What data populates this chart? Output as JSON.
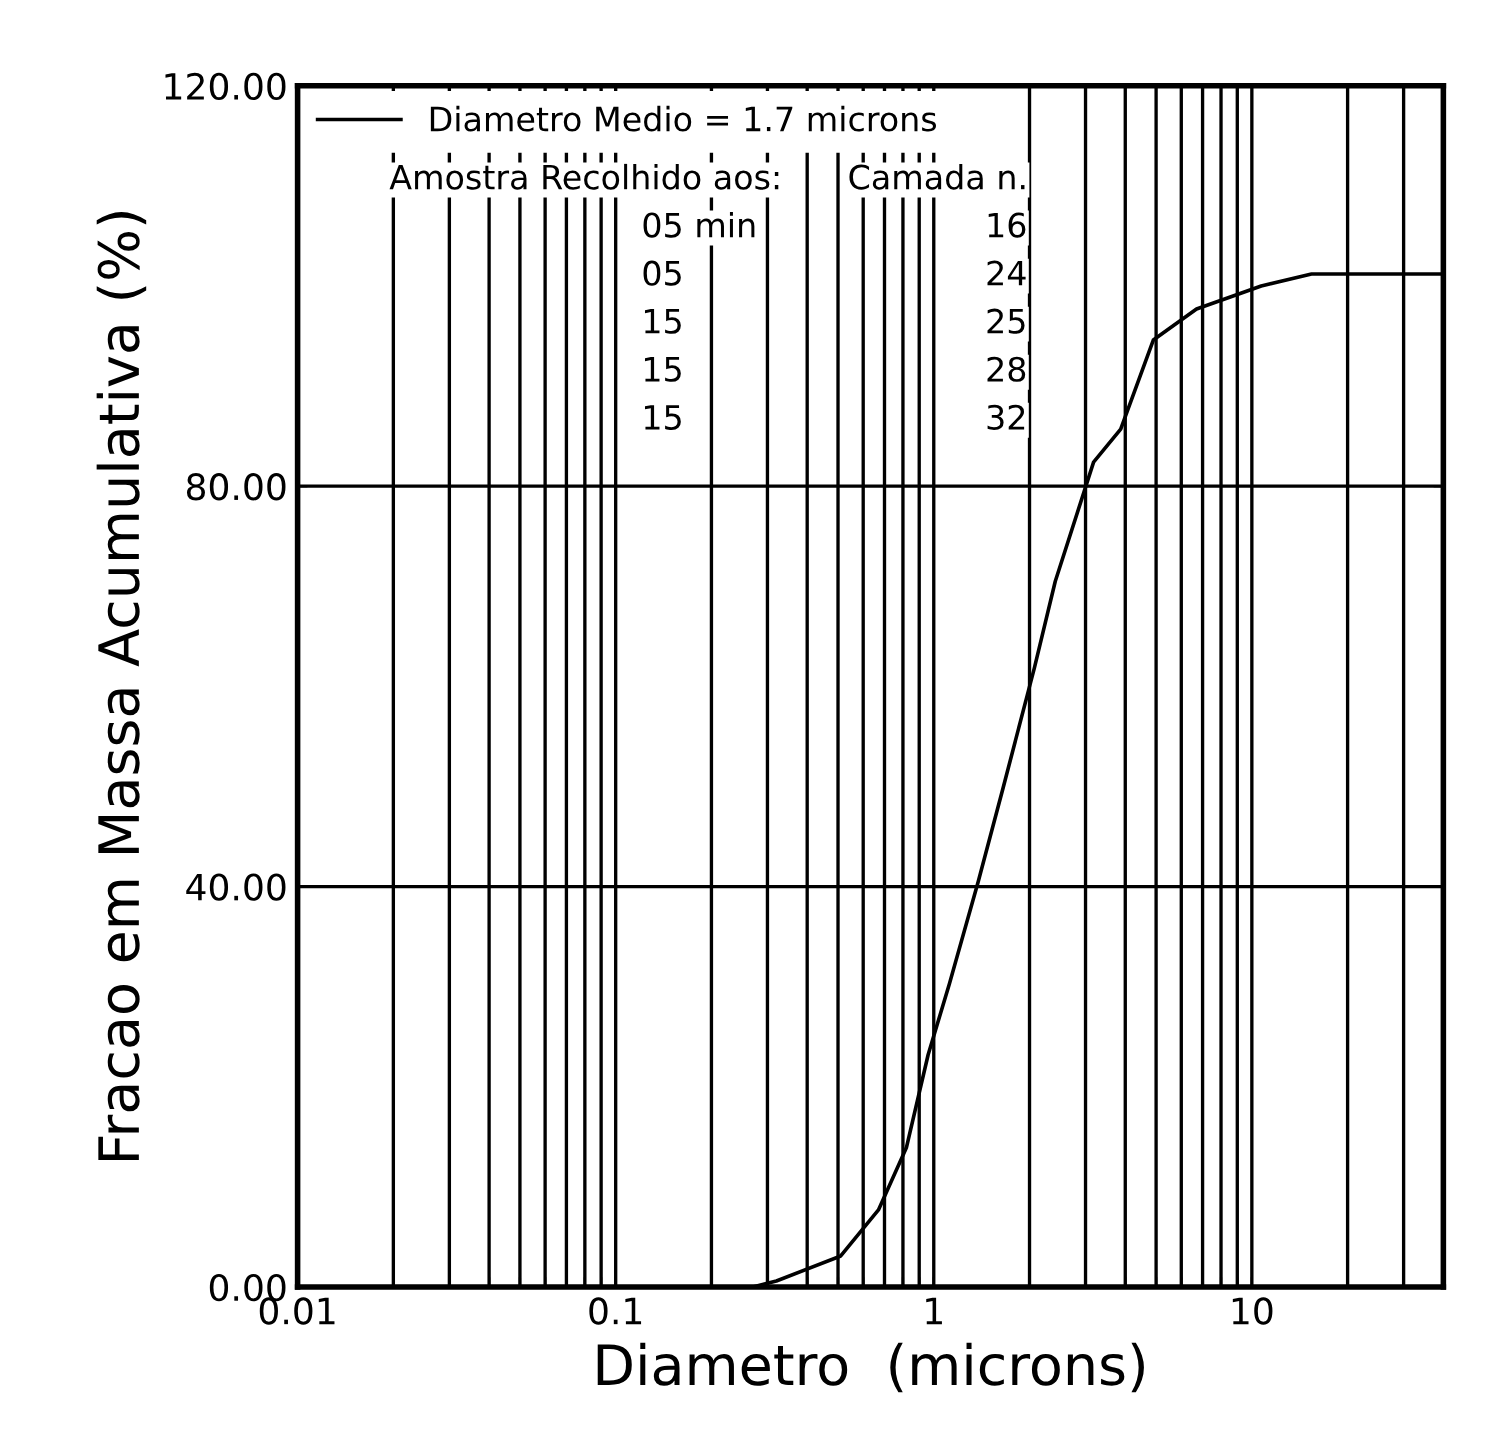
{
  "chart_data": {
    "type": "line",
    "xlabel": "Diametro  (microns)",
    "ylabel": "Fracao em Massa Acumulativa (%)",
    "log": "x",
    "grid": true,
    "legend": "top left",
    "marker": "none",
    "line_style": "solid",
    "xlim": [
      0.01,
      40
    ],
    "ylim": [
      0,
      120
    ],
    "xticks": [
      {
        "value": 0.01,
        "label": "0.01"
      },
      {
        "value": 0.02,
        "label": null
      },
      {
        "value": 0.03,
        "label": null
      },
      {
        "value": 0.04,
        "label": null
      },
      {
        "value": 0.05,
        "label": null
      },
      {
        "value": 0.06,
        "label": null
      },
      {
        "value": 0.07,
        "label": null
      },
      {
        "value": 0.08,
        "label": null
      },
      {
        "value": 0.09,
        "label": null
      },
      {
        "value": 0.1,
        "label": "0.1"
      },
      {
        "value": 0.2,
        "label": null
      },
      {
        "value": 0.3,
        "label": null
      },
      {
        "value": 0.4,
        "label": null
      },
      {
        "value": 0.5,
        "label": null
      },
      {
        "value": 0.6,
        "label": null
      },
      {
        "value": 0.7,
        "label": null
      },
      {
        "value": 0.8,
        "label": null
      },
      {
        "value": 0.9,
        "label": null
      },
      {
        "value": 1,
        "label": "1"
      },
      {
        "value": 2,
        "label": null
      },
      {
        "value": 3,
        "label": null
      },
      {
        "value": 4,
        "label": null
      },
      {
        "value": 5,
        "label": null
      },
      {
        "value": 6,
        "label": null
      },
      {
        "value": 7,
        "label": null
      },
      {
        "value": 8,
        "label": null
      },
      {
        "value": 9,
        "label": null
      },
      {
        "value": 10,
        "label": "10"
      },
      {
        "value": 20,
        "label": null
      },
      {
        "value": 30,
        "label": null
      }
    ],
    "yticks": [
      {
        "value": 0,
        "label": "0.00"
      },
      {
        "value": 40,
        "label": "40.00"
      },
      {
        "value": 80,
        "label": "80.00"
      },
      {
        "value": 120,
        "label": "120.00"
      }
    ],
    "series": [
      {
        "name": "Diametro Medio = 1.7 microns",
        "color": "#000000",
        "x": [
          0.2,
          0.27,
          0.32,
          0.51,
          0.67,
          0.82,
          0.96,
          1.12,
          1.38,
          1.65,
          2.07,
          2.41,
          3.18,
          3.87,
          4.9,
          6.7,
          10.7,
          15.4,
          40
        ],
        "values": [
          0,
          0,
          0.6,
          3.1,
          7.7,
          13.9,
          23.2,
          30.3,
          40.5,
          49.8,
          61.8,
          70.5,
          82.4,
          85.7,
          94.6,
          97.7,
          100,
          101.2,
          101.2
        ]
      }
    ],
    "annotations": [
      "Amostra Recolhido aos:",
      "Camada n.",
      "05 min",
      "16",
      "05",
      "24",
      "15",
      "25",
      "15",
      "28",
      "15",
      "32"
    ]
  }
}
